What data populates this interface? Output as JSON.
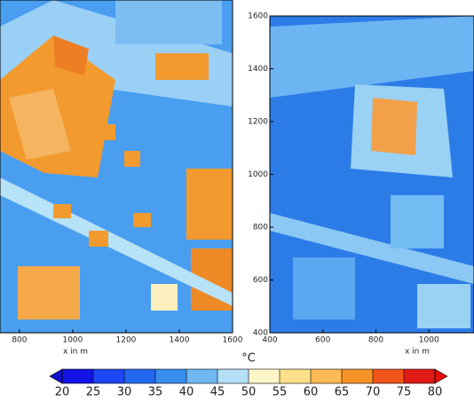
{
  "chart_data": [
    {
      "type": "heatmap",
      "x_label": "x in m",
      "xlim": [
        727,
        1600
      ],
      "xticks": [
        800,
        1000,
        1200,
        1400,
        1600
      ]
    },
    {
      "type": "heatmap",
      "x_label": "x in m",
      "xlim": [
        400,
        1170
      ],
      "xticks": [
        400,
        600,
        800,
        1000
      ],
      "ylim": [
        400,
        1600
      ],
      "yticks": [
        400,
        600,
        800,
        1000,
        1200,
        1400,
        1600
      ]
    },
    {
      "type": "colorbar",
      "title": "°C",
      "ticks": [
        20,
        25,
        30,
        35,
        40,
        45,
        50,
        55,
        60,
        65,
        70,
        75,
        80
      ],
      "colors": [
        "#1414e6",
        "#1e46f5",
        "#2268ee",
        "#3a8ef0",
        "#70b8f4",
        "#b4e0f8",
        "#fff6c8",
        "#ffe08a",
        "#ffba56",
        "#f69228",
        "#f0561c",
        "#e01a14"
      ],
      "under_color": "#1010c8",
      "over_color": "#e41010"
    }
  ]
}
